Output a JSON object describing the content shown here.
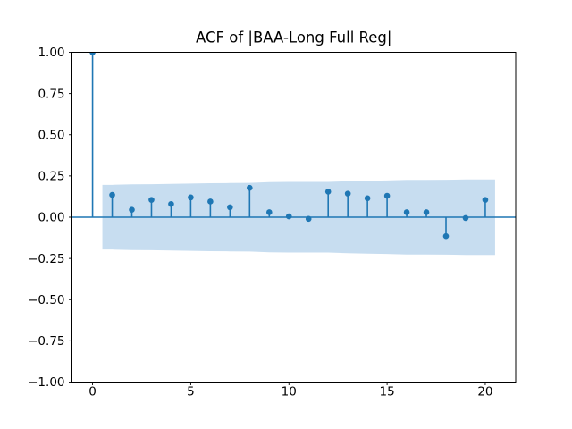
{
  "figure": {
    "background_color": "#ffffff"
  },
  "chart_data": {
    "type": "stem",
    "subtype": "autocorrelation",
    "title": "ACF of |BAA-Long Full Reg|",
    "xlabel": "",
    "ylabel": "",
    "x": [
      0,
      1,
      2,
      3,
      4,
      5,
      6,
      7,
      8,
      9,
      10,
      11,
      12,
      13,
      14,
      15,
      16,
      17,
      18,
      19,
      20
    ],
    "acf_values": [
      1.0,
      0.135,
      0.045,
      0.105,
      0.08,
      0.12,
      0.095,
      0.06,
      0.178,
      0.03,
      0.005,
      -0.01,
      0.155,
      0.143,
      0.115,
      0.13,
      0.03,
      0.03,
      -0.115,
      -0.005,
      0.105
    ],
    "confidence_band": {
      "x": [
        0.5,
        1,
        2,
        3,
        4,
        5,
        6,
        7,
        8,
        9,
        10,
        11,
        12,
        13,
        14,
        15,
        16,
        17,
        18,
        19,
        20,
        20.5
      ],
      "upper": [
        0.196,
        0.196,
        0.199,
        0.2,
        0.202,
        0.204,
        0.206,
        0.207,
        0.208,
        0.213,
        0.214,
        0.214,
        0.214,
        0.218,
        0.221,
        0.223,
        0.226,
        0.226,
        0.227,
        0.229,
        0.229,
        0.229
      ],
      "lower": [
        -0.196,
        -0.196,
        -0.199,
        -0.2,
        -0.202,
        -0.204,
        -0.206,
        -0.207,
        -0.208,
        -0.213,
        -0.214,
        -0.214,
        -0.214,
        -0.218,
        -0.221,
        -0.223,
        -0.226,
        -0.226,
        -0.227,
        -0.229,
        -0.229,
        -0.229
      ]
    },
    "xticks": {
      "values": [
        0,
        5,
        10,
        15,
        20
      ],
      "labels": [
        "0",
        "5",
        "10",
        "15",
        "20"
      ]
    },
    "yticks": {
      "values": [
        1.0,
        0.75,
        0.5,
        0.25,
        0.0,
        -0.25,
        -0.5,
        -0.75,
        -1.0
      ],
      "labels": [
        "1.00",
        "0.75",
        "0.50",
        "0.25",
        "0.00",
        "−0.25",
        "−0.50",
        "−0.75",
        "−1.00"
      ]
    },
    "xlim": [
      -1.05,
      21.55
    ],
    "ylim": [
      -1.0,
      1.0
    ],
    "grid": false,
    "legend": null,
    "colors": {
      "stem": "#1f77b4",
      "marker": "#1f77b4",
      "zero_line": "#1f77b4",
      "band_fill": "#c7ddf0",
      "spine": "#000000",
      "text": "#000000"
    }
  }
}
